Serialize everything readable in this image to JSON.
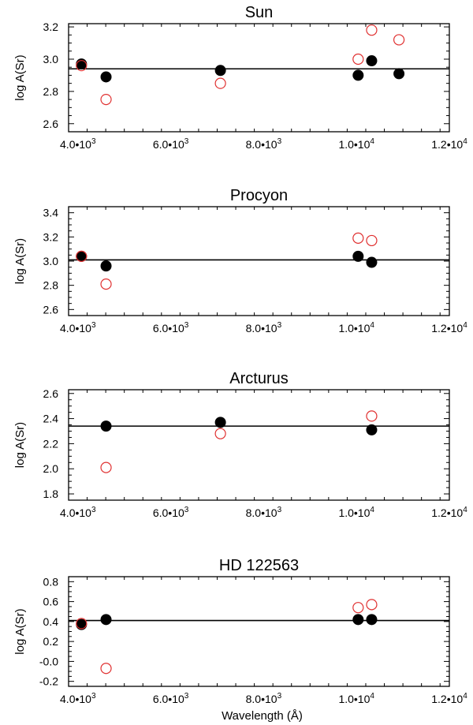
{
  "chart_data": [
    {
      "type": "scatter",
      "title": "Sun",
      "xlabel": "",
      "ylabel": "log A(Sr)",
      "xlim": [
        3800,
        12000
      ],
      "ylim": [
        2.55,
        3.22
      ],
      "x_ticks": [
        4000,
        6000,
        8000,
        10000,
        12000
      ],
      "x_tick_labels": [
        {
          "base": "4.0•10",
          "exp": "3"
        },
        {
          "base": "6.0•10",
          "exp": "3"
        },
        {
          "base": "8.0•10",
          "exp": "3"
        },
        {
          "base": "1.0•10",
          "exp": "4"
        },
        {
          "base": "1.2•10",
          "exp": "4"
        }
      ],
      "y_ticks": [
        2.6,
        2.8,
        3.0,
        3.2
      ],
      "y_tick_labels": [
        "2.6",
        "2.8",
        "3.0",
        "3.2"
      ],
      "reference_line": 2.94,
      "series": [
        {
          "color": "#000000",
          "filled": true,
          "x": [
            4077,
            4607,
            7070,
            10036,
            10327,
            10915
          ],
          "y": [
            2.97,
            2.89,
            2.93,
            2.9,
            2.99,
            2.91
          ]
        },
        {
          "color": "#e03030",
          "filled": false,
          "x": [
            4077,
            4607,
            7070,
            10036,
            10327,
            10915
          ],
          "y": [
            2.96,
            2.75,
            2.85,
            3.0,
            3.18,
            3.12
          ]
        }
      ]
    },
    {
      "type": "scatter",
      "title": "Procyon",
      "xlabel": "",
      "ylabel": "log A(Sr)",
      "xlim": [
        3800,
        12000
      ],
      "ylim": [
        2.55,
        3.45
      ],
      "x_ticks": [
        4000,
        6000,
        8000,
        10000,
        12000
      ],
      "x_tick_labels": [
        {
          "base": "4.0•10",
          "exp": "3"
        },
        {
          "base": "6.0•10",
          "exp": "3"
        },
        {
          "base": "8.0•10",
          "exp": "3"
        },
        {
          "base": "1.0•10",
          "exp": "4"
        },
        {
          "base": "1.2•10",
          "exp": "4"
        }
      ],
      "y_ticks": [
        2.6,
        2.8,
        3.0,
        3.2,
        3.4
      ],
      "y_tick_labels": [
        "2.6",
        "2.8",
        "3.0",
        "3.2",
        "3.4"
      ],
      "reference_line": 3.01,
      "series": [
        {
          "color": "#000000",
          "filled": true,
          "x": [
            4077,
            4607,
            10036,
            10327
          ],
          "y": [
            3.04,
            2.96,
            3.04,
            2.99
          ]
        },
        {
          "color": "#e03030",
          "filled": false,
          "x": [
            4077,
            4607,
            10036,
            10327
          ],
          "y": [
            3.04,
            2.81,
            3.19,
            3.17
          ]
        }
      ]
    },
    {
      "type": "scatter",
      "title": "Arcturus",
      "xlabel": "",
      "ylabel": "log A(Sr)",
      "xlim": [
        3800,
        12000
      ],
      "ylim": [
        1.75,
        2.63
      ],
      "x_ticks": [
        4000,
        6000,
        8000,
        10000,
        12000
      ],
      "x_tick_labels": [
        {
          "base": "4.0•10",
          "exp": "3"
        },
        {
          "base": "6.0•10",
          "exp": "3"
        },
        {
          "base": "8.0•10",
          "exp": "3"
        },
        {
          "base": "1.0•10",
          "exp": "4"
        },
        {
          "base": "1.2•10",
          "exp": "4"
        }
      ],
      "y_ticks": [
        1.8,
        2.0,
        2.2,
        2.4,
        2.6
      ],
      "y_tick_labels": [
        "1.8",
        "2.0",
        "2.2",
        "2.4",
        "2.6"
      ],
      "reference_line": 2.34,
      "series": [
        {
          "color": "#000000",
          "filled": true,
          "x": [
            4607,
            7070,
            10327
          ],
          "y": [
            2.34,
            2.37,
            2.31
          ]
        },
        {
          "color": "#e03030",
          "filled": false,
          "x": [
            4607,
            7070,
            10327
          ],
          "y": [
            2.01,
            2.28,
            2.42
          ]
        }
      ]
    },
    {
      "type": "scatter",
      "title": "HD 122563",
      "xlabel": "Wavelength (Å)",
      "ylabel": "log A(Sr)",
      "xlim": [
        3800,
        12000
      ],
      "ylim": [
        -0.25,
        0.85
      ],
      "x_ticks": [
        4000,
        6000,
        8000,
        10000,
        12000
      ],
      "x_tick_labels": [
        {
          "base": "4.0•10",
          "exp": "3"
        },
        {
          "base": "6.0•10",
          "exp": "3"
        },
        {
          "base": "8.0•10",
          "exp": "3"
        },
        {
          "base": "1.0•10",
          "exp": "4"
        },
        {
          "base": "1.2•10",
          "exp": "4"
        }
      ],
      "y_ticks": [
        -0.2,
        0.0,
        0.2,
        0.4,
        0.6,
        0.8
      ],
      "y_tick_labels": [
        "-0.2",
        "-0.0",
        "0.2",
        "0.4",
        "0.6",
        "0.8"
      ],
      "reference_line": 0.41,
      "series": [
        {
          "color": "#000000",
          "filled": true,
          "x": [
            4077,
            4607,
            10036,
            10327
          ],
          "y": [
            0.37,
            0.42,
            0.42,
            0.42
          ]
        },
        {
          "color": "#e03030",
          "filled": false,
          "x": [
            4077,
            4607,
            10036,
            10327
          ],
          "y": [
            0.38,
            -0.07,
            0.54,
            0.57
          ]
        }
      ]
    }
  ]
}
